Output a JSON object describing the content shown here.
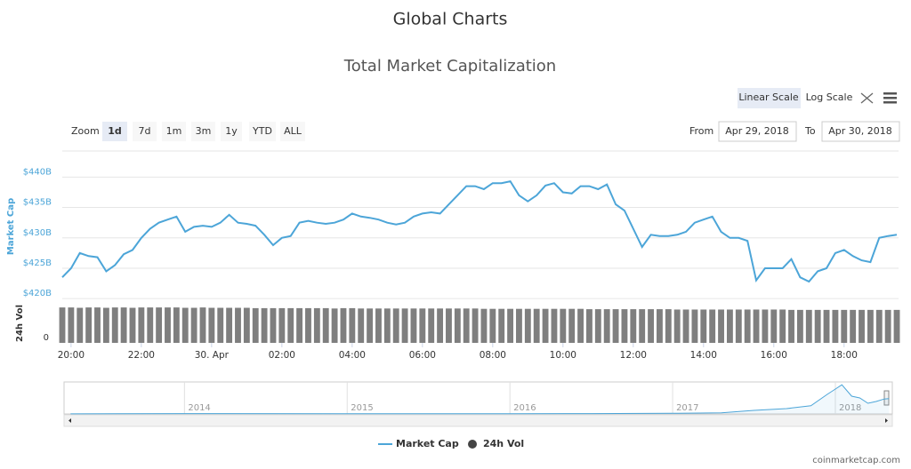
{
  "header": {
    "title": "Global Charts"
  },
  "toolbar": {
    "scale_buttons": [
      "Linear Scale",
      "Log Scale"
    ],
    "zoom_label": "Zoom",
    "zoom_options": [
      "1d",
      "7d",
      "1m",
      "3m",
      "1y",
      "YTD",
      "ALL"
    ],
    "from_label": "From",
    "from_date": "Apr 29, 2018",
    "to_label": "To",
    "to_date": "Apr 30, 2018"
  },
  "chart_data": {
    "type": "line",
    "title": "Total Market Capitalization",
    "x": [
      19.75,
      20,
      20.25,
      20.5,
      20.75,
      21,
      21.25,
      21.5,
      21.75,
      22,
      22.25,
      22.5,
      22.75,
      23,
      23.25,
      23.5,
      23.75,
      24,
      24.25,
      24.5,
      24.75,
      25,
      25.25,
      25.5,
      25.75,
      26,
      26.25,
      26.5,
      26.75,
      27,
      27.25,
      27.5,
      27.75,
      28,
      28.25,
      28.5,
      28.75,
      29,
      29.25,
      29.5,
      29.75,
      30,
      30.25,
      30.5,
      30.75,
      31,
      31.25,
      31.5,
      31.75,
      32,
      32.25,
      32.5,
      32.75,
      33,
      33.25,
      33.5,
      33.75,
      34,
      34.25,
      34.5,
      34.75,
      35,
      35.25,
      35.5,
      35.75,
      36,
      36.25,
      36.5,
      36.75,
      37,
      37.25,
      37.5,
      37.75,
      38,
      38.25,
      38.5,
      38.75,
      39,
      39.25,
      39.5,
      39.75,
      40,
      40.25,
      40.5,
      40.75,
      41,
      41.25,
      41.5,
      41.75,
      42,
      42.25,
      42.5,
      42.75,
      43,
      43.25,
      43.5
    ],
    "xlim": [
      19.75,
      43.55
    ],
    "xticks": [
      {
        "value": 20,
        "label": "20:00"
      },
      {
        "value": 22,
        "label": "22:00"
      },
      {
        "value": 24,
        "label": "30. Apr"
      },
      {
        "value": 26,
        "label": "02:00"
      },
      {
        "value": 28,
        "label": "04:00"
      },
      {
        "value": 30,
        "label": "06:00"
      },
      {
        "value": 32,
        "label": "08:00"
      },
      {
        "value": 34,
        "label": "10:00"
      },
      {
        "value": 36,
        "label": "12:00"
      },
      {
        "value": 38,
        "label": "14:00"
      },
      {
        "value": 40,
        "label": "16:00"
      },
      {
        "value": 42,
        "label": "18:00"
      }
    ],
    "ylim": [
      419,
      444
    ],
    "yticks": [
      {
        "value": 420,
        "label": "$420B"
      },
      {
        "value": 425,
        "label": "$425B"
      },
      {
        "value": 430,
        "label": "$430B"
      },
      {
        "value": 435,
        "label": "$435B"
      },
      {
        "value": 440,
        "label": "$440B"
      }
    ],
    "grid": true,
    "series": [
      {
        "name": "Market Cap",
        "color": "#4ca5d8",
        "values": [
          423.5,
          425,
          427.5,
          427,
          426.8,
          424.5,
          425.5,
          427.3,
          428,
          430,
          431.5,
          432.5,
          433,
          433.5,
          431,
          431.8,
          432,
          431.8,
          432.5,
          433.8,
          432.5,
          432.3,
          432,
          430.5,
          428.8,
          430,
          430.3,
          432.5,
          432.8,
          432.5,
          432.3,
          432.5,
          433,
          434,
          433.5,
          433.3,
          433,
          432.5,
          432.2,
          432.5,
          433.5,
          434,
          434.2,
          434,
          435.5,
          437,
          438.5,
          438.5,
          438,
          439,
          439,
          439.3,
          437,
          436,
          437,
          438.6,
          439,
          437.5,
          437.3,
          438.5,
          438.5,
          438,
          438.8,
          435.5,
          434.5,
          431.5,
          428.5,
          430.5,
          430.3,
          430.3,
          430.5,
          431,
          432.5,
          433,
          433.5,
          431,
          430,
          430,
          429.5,
          423,
          425,
          425,
          425,
          426.5,
          423.5,
          422.8,
          424.5,
          425,
          427.5,
          428,
          427,
          426.3,
          426,
          430,
          430.3,
          430.5
        ]
      }
    ],
    "volume": {
      "name": "24h Vol",
      "color": "#7f7f7f",
      "ylim": [
        0,
        11
      ],
      "yticks": [
        0
      ],
      "values": [
        10.2,
        10.2,
        10.1,
        10.2,
        10.2,
        10.1,
        10.2,
        10.2,
        10.1,
        10.2,
        10.2,
        10.2,
        10.2,
        10.2,
        10.1,
        10.1,
        10.2,
        10.1,
        10.1,
        10.1,
        10.1,
        10.1,
        10.0,
        10.0,
        10.0,
        10.0,
        10.0,
        10.0,
        10.0,
        10.0,
        10.0,
        9.9,
        10.0,
        10.0,
        9.9,
        9.9,
        9.9,
        9.9,
        9.9,
        9.9,
        9.9,
        9.9,
        9.9,
        9.9,
        9.9,
        9.9,
        9.9,
        9.9,
        9.8,
        9.8,
        9.8,
        9.8,
        9.8,
        9.8,
        9.8,
        9.8,
        9.8,
        9.8,
        9.8,
        9.8,
        9.7,
        9.7,
        9.7,
        9.7,
        9.7,
        9.7,
        9.7,
        9.7,
        9.7,
        9.7,
        9.6,
        9.6,
        9.6,
        9.6,
        9.6,
        9.6,
        9.6,
        9.6,
        9.6,
        9.6,
        9.6,
        9.6,
        9.6,
        9.5,
        9.5,
        9.5,
        9.5,
        9.5,
        9.5,
        9.5,
        9.5,
        9.5,
        9.5,
        9.5,
        9.5,
        9.5
      ]
    },
    "navigator": {
      "x": [
        2013.3,
        2014,
        2015,
        2016,
        2016.5,
        2017,
        2017.3,
        2017.5,
        2017.7,
        2017.85,
        2017.95,
        2018,
        2018.04,
        2018.1,
        2018.15,
        2018.2,
        2018.25,
        2018.3,
        2018.33
      ],
      "values": [
        2,
        10,
        5,
        7,
        10,
        18,
        30,
        100,
        150,
        230,
        550,
        700,
        820,
        500,
        450,
        300,
        350,
        420,
        430
      ],
      "xlim": [
        2013.26,
        2018.35
      ],
      "ylim": [
        0,
        850
      ],
      "xticks": [
        {
          "value": 2014,
          "label": "2014"
        },
        {
          "value": 2015,
          "label": "2015"
        },
        {
          "value": 2016,
          "label": "2016"
        },
        {
          "value": 2017,
          "label": "2017"
        },
        {
          "value": 2018,
          "label": "2018"
        }
      ]
    }
  },
  "credit": "coinmarketcap.com"
}
